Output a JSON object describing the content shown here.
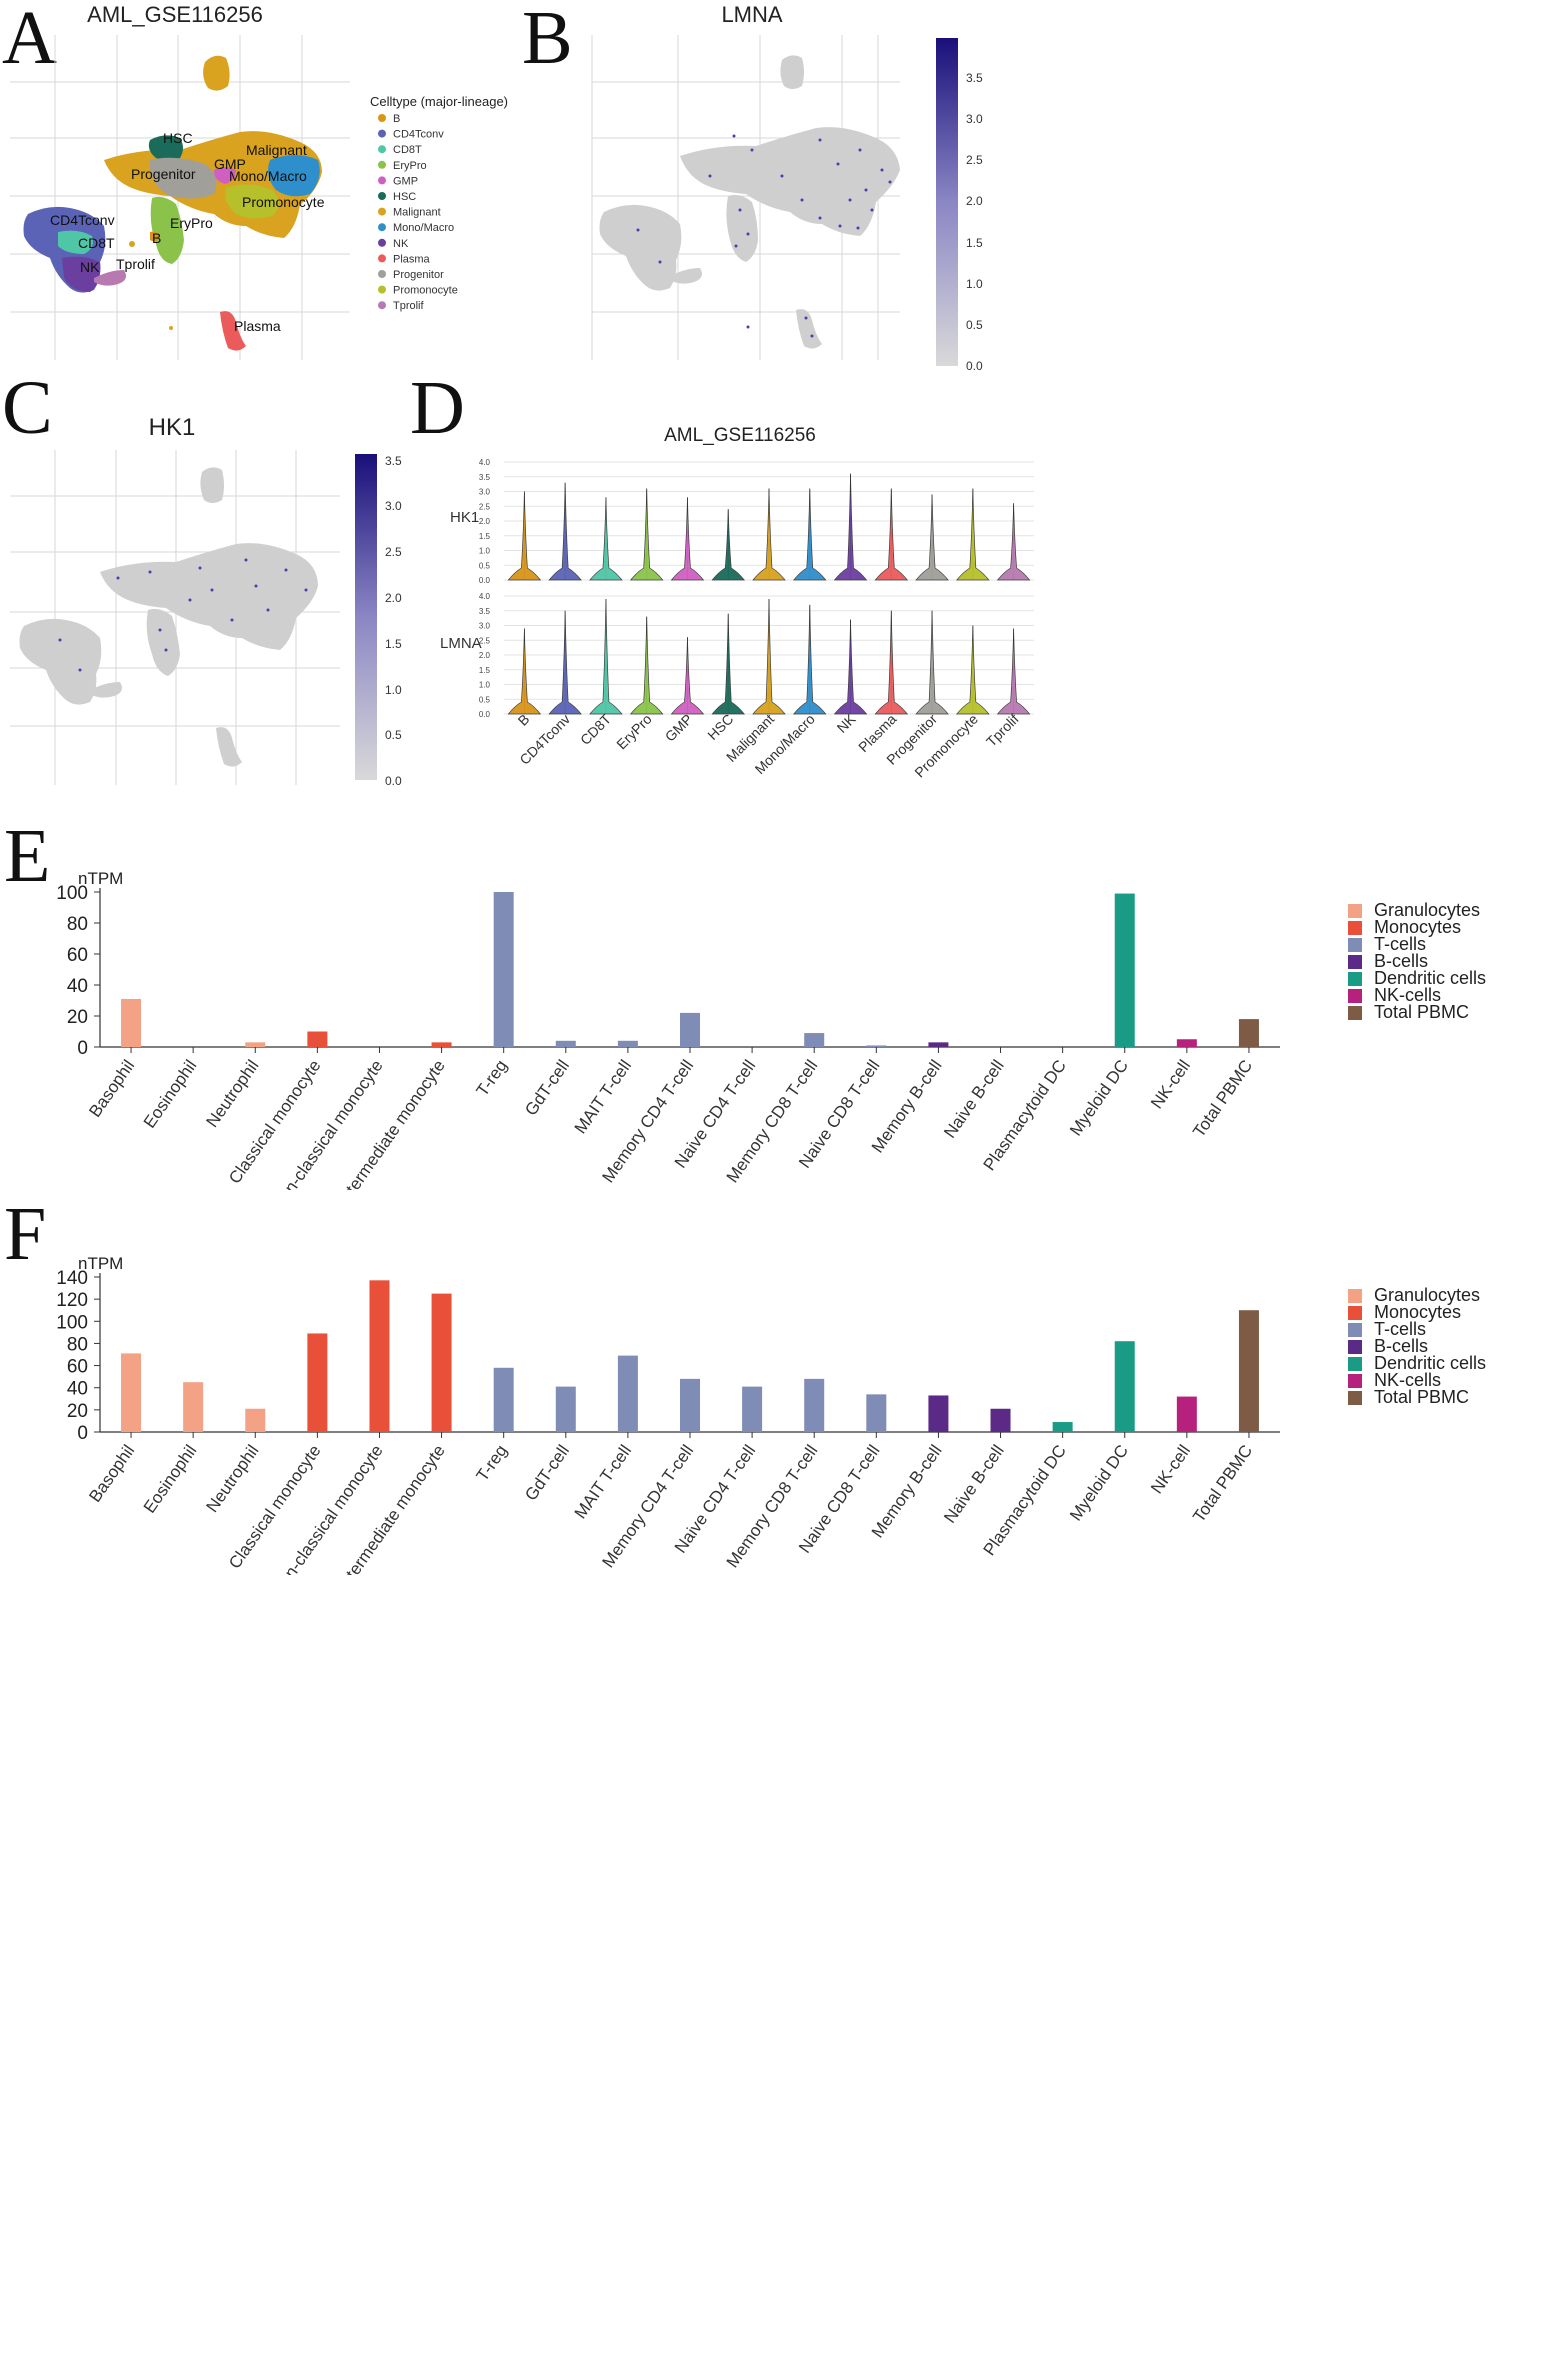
{
  "panel_labels": [
    "A",
    "B",
    "C",
    "D",
    "E",
    "F"
  ],
  "panelA": {
    "title": "AML_GSE116256",
    "legend_title": "Celltype (major-lineage)",
    "celltypes": [
      {
        "name": "B",
        "color": "#D8951A"
      },
      {
        "name": "CD4Tconv",
        "color": "#5A63B6"
      },
      {
        "name": "CD8T",
        "color": "#4FC7A6"
      },
      {
        "name": "EryPro",
        "color": "#8BC34A"
      },
      {
        "name": "GMP",
        "color": "#D15FC2"
      },
      {
        "name": "HSC",
        "color": "#1B6B5A"
      },
      {
        "name": "Malignant",
        "color": "#D9A21F"
      },
      {
        "name": "Mono/Macro",
        "color": "#2F8FCC"
      },
      {
        "name": "NK",
        "color": "#6B3FA0"
      },
      {
        "name": "Plasma",
        "color": "#EB5B5B"
      },
      {
        "name": "Progenitor",
        "color": "#A09F99"
      },
      {
        "name": "Promonocyte",
        "color": "#B6C02B"
      },
      {
        "name": "Tprolif",
        "color": "#B879B1"
      }
    ],
    "cluster_labels": [
      "HSC",
      "GMP",
      "Malignant",
      "Progenitor",
      "Mono/Macro",
      "Promonocyte",
      "EryPro",
      "B",
      "CD4Tconv",
      "CD8T",
      "NK",
      "Tprolif",
      "Plasma"
    ]
  },
  "panelB": {
    "title": "LMNA",
    "colorbar_ticks": [
      "3.5",
      "3.0",
      "2.5",
      "2.0",
      "1.5",
      "1.0",
      "0.5",
      "0.0"
    ]
  },
  "panelC": {
    "title": "HK1",
    "colorbar_ticks": [
      "3.5",
      "3.0",
      "2.5",
      "2.0",
      "1.5",
      "1.0",
      "0.5",
      "0.0"
    ]
  },
  "chart_data": [
    {
      "type": "violin",
      "title": "AML_GSE116256",
      "categories": [
        "B",
        "CD4Tconv",
        "CD8T",
        "EryPro",
        "GMP",
        "HSC",
        "Malignant",
        "Mono/Macro",
        "NK",
        "Plasma",
        "Progenitor",
        "Promonocyte",
        "Tprolif"
      ],
      "rows": [
        {
          "name": "HK1",
          "ylim": [
            0,
            4.0
          ],
          "yticks": [
            "4.0",
            "3.5",
            "3.0",
            "2.5",
            "2.0",
            "1.5",
            "1.0",
            "0.5",
            "0.0"
          ],
          "max": [
            3.0,
            3.3,
            2.8,
            3.1,
            2.8,
            2.4,
            3.1,
            3.1,
            3.6,
            3.1,
            2.9,
            3.1,
            2.6
          ]
        },
        {
          "name": "LMNA",
          "ylim": [
            0,
            4.0
          ],
          "yticks": [
            "4.0",
            "3.5",
            "3.0",
            "2.5",
            "2.0",
            "1.5",
            "1.0",
            "0.5",
            "0.0"
          ],
          "max": [
            2.9,
            3.5,
            3.9,
            3.3,
            2.6,
            3.4,
            3.9,
            3.7,
            3.2,
            3.5,
            3.5,
            3.0,
            2.9
          ]
        }
      ],
      "colors": [
        "#D8951A",
        "#5A63B6",
        "#4FC7A6",
        "#8BC34A",
        "#D15FC2",
        "#1B6B5A",
        "#D9A21F",
        "#2F8FCC",
        "#6B3FA0",
        "#EB5B5B",
        "#A09F99",
        "#B6C02B",
        "#B879B1"
      ]
    },
    {
      "type": "bar",
      "ylabel": "nTPM",
      "ylim": [
        0,
        100
      ],
      "yticks": [
        0,
        20,
        40,
        60,
        80,
        100
      ],
      "categories": [
        "Basophil",
        "Eosinophil",
        "Neutrophil",
        "Classical monocyte",
        "Non-classical monocyte",
        "Intermediate monocyte",
        "T-reg",
        "GdT-cell",
        "MAIT T-cell",
        "Memory CD4 T-cell",
        "Naive CD4 T-cell",
        "Memory CD8 T-cell",
        "Naive CD8 T-cell",
        "Memory B-cell",
        "Naive B-cell",
        "Plasmacytoid DC",
        "Myeloid DC",
        "NK-cell",
        "Total PBMC"
      ],
      "values": [
        31,
        0,
        3,
        10,
        0,
        3,
        100,
        4,
        4,
        22,
        0,
        9,
        1,
        3,
        0,
        0,
        99,
        5,
        18
      ],
      "groups": [
        "Granulocytes",
        "Granulocytes",
        "Granulocytes",
        "Monocytes",
        "Monocytes",
        "Monocytes",
        "T-cells",
        "T-cells",
        "T-cells",
        "T-cells",
        "T-cells",
        "T-cells",
        "T-cells",
        "B-cells",
        "B-cells",
        "Dendritic cells",
        "Dendritic cells",
        "NK-cells",
        "Total PBMC"
      ],
      "legend": [
        {
          "name": "Granulocytes",
          "color": "#F4A286"
        },
        {
          "name": "Monocytes",
          "color": "#E8503A"
        },
        {
          "name": "T-cells",
          "color": "#7F8CB6"
        },
        {
          "name": "B-cells",
          "color": "#5B2A86"
        },
        {
          "name": "Dendritic cells",
          "color": "#1A9B85"
        },
        {
          "name": "NK-cells",
          "color": "#B7217E"
        },
        {
          "name": "Total PBMC",
          "color": "#7D5B45"
        }
      ]
    },
    {
      "type": "bar",
      "ylabel": "nTPM",
      "ylim": [
        0,
        140
      ],
      "yticks": [
        0,
        20,
        40,
        60,
        80,
        100,
        120,
        140
      ],
      "categories": [
        "Basophil",
        "Eosinophil",
        "Neutrophil",
        "Classical monocyte",
        "Non-classical monocyte",
        "Intermediate monocyte",
        "T-reg",
        "GdT-cell",
        "MAIT T-cell",
        "Memory CD4 T-cell",
        "Naive CD4 T-cell",
        "Memory CD8 T-cell",
        "Naive CD8 T-cell",
        "Memory B-cell",
        "Naive B-cell",
        "Plasmacytoid DC",
        "Myeloid DC",
        "NK-cell",
        "Total PBMC"
      ],
      "values": [
        71,
        45,
        21,
        89,
        137,
        125,
        58,
        41,
        69,
        48,
        41,
        48,
        34,
        33,
        21,
        9,
        82,
        32,
        110
      ],
      "groups": [
        "Granulocytes",
        "Granulocytes",
        "Granulocytes",
        "Monocytes",
        "Monocytes",
        "Monocytes",
        "T-cells",
        "T-cells",
        "T-cells",
        "T-cells",
        "T-cells",
        "T-cells",
        "T-cells",
        "B-cells",
        "B-cells",
        "Dendritic cells",
        "Dendritic cells",
        "NK-cells",
        "Total PBMC"
      ],
      "legend": [
        {
          "name": "Granulocytes",
          "color": "#F4A286"
        },
        {
          "name": "Monocytes",
          "color": "#E8503A"
        },
        {
          "name": "T-cells",
          "color": "#7F8CB6"
        },
        {
          "name": "B-cells",
          "color": "#5B2A86"
        },
        {
          "name": "Dendritic cells",
          "color": "#1A9B85"
        },
        {
          "name": "NK-cells",
          "color": "#B7217E"
        },
        {
          "name": "Total PBMC",
          "color": "#7D5B45"
        }
      ]
    }
  ]
}
